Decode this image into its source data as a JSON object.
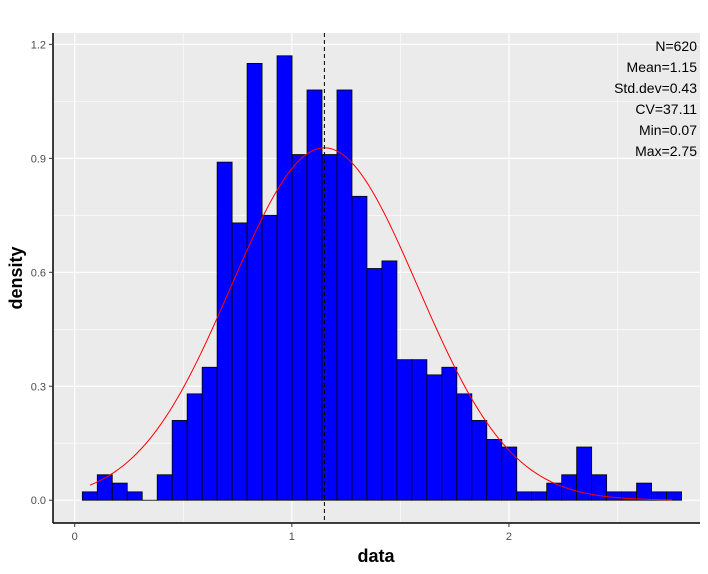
{
  "chart_data": {
    "type": "bar",
    "xlabel": "data",
    "ylabel": "density",
    "xlim": [
      -0.1,
      2.88
    ],
    "ylim": [
      -0.06,
      1.23
    ],
    "x_ticks": [
      {
        "value": 0,
        "label": "0"
      },
      {
        "value": 1,
        "label": "1"
      },
      {
        "value": 2,
        "label": "2"
      }
    ],
    "y_ticks": [
      {
        "value": 0.0,
        "label": "0.0"
      },
      {
        "value": 0.3,
        "label": "0.3"
      },
      {
        "value": 0.6,
        "label": "0.6"
      },
      {
        "value": 0.9,
        "label": "0.9"
      },
      {
        "value": 1.2,
        "label": "1.2"
      }
    ],
    "grid": true,
    "bin_width": 0.069,
    "bins": [
      {
        "start": 0.035,
        "density": 0.022
      },
      {
        "start": 0.104,
        "density": 0.067
      },
      {
        "start": 0.173,
        "density": 0.045
      },
      {
        "start": 0.242,
        "density": 0.022
      },
      {
        "start": 0.311,
        "density": 0.0
      },
      {
        "start": 0.38,
        "density": 0.067
      },
      {
        "start": 0.449,
        "density": 0.21
      },
      {
        "start": 0.518,
        "density": 0.28
      },
      {
        "start": 0.587,
        "density": 0.35
      },
      {
        "start": 0.656,
        "density": 0.89
      },
      {
        "start": 0.725,
        "density": 0.73
      },
      {
        "start": 0.794,
        "density": 1.15
      },
      {
        "start": 0.863,
        "density": 0.75
      },
      {
        "start": 0.932,
        "density": 1.17
      },
      {
        "start": 1.001,
        "density": 0.91
      },
      {
        "start": 1.07,
        "density": 1.08
      },
      {
        "start": 1.139,
        "density": 0.91
      },
      {
        "start": 1.208,
        "density": 1.08
      },
      {
        "start": 1.277,
        "density": 0.8
      },
      {
        "start": 1.346,
        "density": 0.61
      },
      {
        "start": 1.415,
        "density": 0.63
      },
      {
        "start": 1.484,
        "density": 0.37
      },
      {
        "start": 1.553,
        "density": 0.37
      },
      {
        "start": 1.622,
        "density": 0.33
      },
      {
        "start": 1.691,
        "density": 0.35
      },
      {
        "start": 1.76,
        "density": 0.28
      },
      {
        "start": 1.829,
        "density": 0.21
      },
      {
        "start": 1.898,
        "density": 0.16
      },
      {
        "start": 1.967,
        "density": 0.14
      },
      {
        "start": 2.036,
        "density": 0.022
      },
      {
        "start": 2.105,
        "density": 0.022
      },
      {
        "start": 2.174,
        "density": 0.045
      },
      {
        "start": 2.243,
        "density": 0.067
      },
      {
        "start": 2.312,
        "density": 0.14
      },
      {
        "start": 2.381,
        "density": 0.067
      },
      {
        "start": 2.45,
        "density": 0.022
      },
      {
        "start": 2.519,
        "density": 0.022
      },
      {
        "start": 2.588,
        "density": 0.045
      },
      {
        "start": 2.657,
        "density": 0.022
      },
      {
        "start": 2.726,
        "density": 0.022
      }
    ],
    "normal_curve": {
      "mean": 1.15,
      "sd": 0.43,
      "x_from": 0.07,
      "x_to": 2.75
    },
    "mean_line": 1.15,
    "stats": [
      "N=620",
      "Mean=1.15",
      "Std.dev=0.43",
      "CV=37.11",
      "Min=0.07",
      "Max=2.75"
    ],
    "stats_placement": "top-right",
    "colors": {
      "bar_fill": "#0000ff",
      "bar_stroke": "#000000",
      "curve": "#ff0000",
      "mean_line": "#000000",
      "panel_background": "#ebebeb",
      "grid": "#ffffff"
    }
  }
}
